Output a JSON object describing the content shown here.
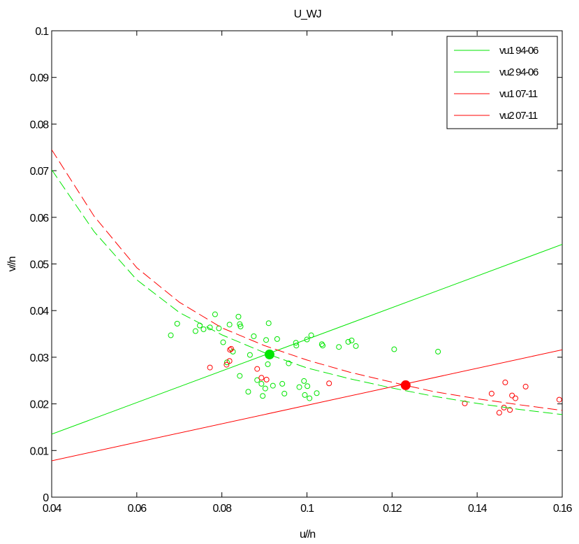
{
  "chart_data": {
    "type": "scatter",
    "title": "U_WJ",
    "xlabel": "u//n",
    "ylabel": "v//n",
    "xlim": [
      0.04,
      0.16
    ],
    "ylim": [
      0,
      0.1
    ],
    "xticks": [
      0.04,
      0.06,
      0.08,
      0.1,
      0.12,
      0.14,
      0.16
    ],
    "xtick_labels": [
      "0.04",
      "0.06",
      "0.08",
      "0.1",
      "0.12",
      "0.14",
      "0.16"
    ],
    "yticks": [
      0,
      0.01,
      0.02,
      0.03,
      0.04,
      0.05,
      0.06,
      0.07,
      0.08,
      0.09,
      0.1
    ],
    "ytick_labels": [
      "0",
      "0.01",
      "0.02",
      "0.03",
      "0.04",
      "0.05",
      "0.06",
      "0.07",
      "0.08",
      "0.09",
      "0.1"
    ],
    "grid": false,
    "legend": "top-right",
    "colors": {
      "green": "#00e600",
      "red": "#ff0000"
    },
    "lines": [
      {
        "name": "vu1 94-06",
        "color": "#00e600",
        "dash": "solid",
        "x": [
          0.04,
          0.16
        ],
        "y": [
          0.0135,
          0.0542
        ]
      },
      {
        "name": "vu2 94-06",
        "color": "#00e600",
        "dash": "dashed",
        "x": [
          0.04,
          0.05,
          0.06,
          0.07,
          0.08,
          0.091,
          0.1,
          0.11,
          0.12,
          0.13,
          0.14,
          0.15,
          0.16
        ],
        "y": [
          0.0702,
          0.0569,
          0.0466,
          0.0396,
          0.0348,
          0.0306,
          0.0277,
          0.0254,
          0.0234,
          0.0216,
          0.0201,
          0.0188,
          0.0177
        ]
      },
      {
        "name": "vu1 07-11",
        "color": "#ff0000",
        "dash": "solid",
        "x": [
          0.04,
          0.16
        ],
        "y": [
          0.0078,
          0.0316
        ]
      },
      {
        "name": "vu2 07-11",
        "color": "#ff0000",
        "dash": "dashed",
        "x": [
          0.04,
          0.05,
          0.06,
          0.07,
          0.08,
          0.09,
          0.1,
          0.11,
          0.123,
          0.13,
          0.14,
          0.15,
          0.16
        ],
        "y": [
          0.0745,
          0.0602,
          0.0492,
          0.0418,
          0.0363,
          0.0325,
          0.0294,
          0.0268,
          0.024,
          0.0226,
          0.0211,
          0.0198,
          0.0186
        ]
      }
    ],
    "scatter_series": [
      {
        "color": "#00e600",
        "points": [
          [
            0.068,
            0.0347
          ],
          [
            0.0695,
            0.0372
          ],
          [
            0.0738,
            0.0356
          ],
          [
            0.0748,
            0.0368
          ],
          [
            0.0757,
            0.036
          ],
          [
            0.0772,
            0.0364
          ],
          [
            0.0784,
            0.0392
          ],
          [
            0.0793,
            0.0362
          ],
          [
            0.0803,
            0.0332
          ],
          [
            0.0812,
            0.0289
          ],
          [
            0.0818,
            0.037
          ],
          [
            0.0826,
            0.0312
          ],
          [
            0.0839,
            0.0387
          ],
          [
            0.0842,
            0.0371
          ],
          [
            0.0844,
            0.0366
          ],
          [
            0.0842,
            0.026
          ],
          [
            0.0862,
            0.0226
          ],
          [
            0.0866,
            0.0305
          ],
          [
            0.0875,
            0.0345
          ],
          [
            0.0883,
            0.0251
          ],
          [
            0.0893,
            0.0243
          ],
          [
            0.0896,
            0.0217
          ],
          [
            0.0902,
            0.0233
          ],
          [
            0.0904,
            0.0337
          ],
          [
            0.0908,
            0.0285
          ],
          [
            0.091,
            0.0373
          ],
          [
            0.092,
            0.0239
          ],
          [
            0.093,
            0.0339
          ],
          [
            0.0942,
            0.0243
          ],
          [
            0.0947,
            0.0222
          ],
          [
            0.0957,
            0.0287
          ],
          [
            0.0974,
            0.0331
          ],
          [
            0.0975,
            0.0325
          ],
          [
            0.0982,
            0.0236
          ],
          [
            0.0993,
            0.0249
          ],
          [
            0.1,
            0.0338
          ],
          [
            0.1001,
            0.0238
          ],
          [
            0.0995,
            0.0219
          ],
          [
            0.1006,
            0.0212
          ],
          [
            0.101,
            0.0347
          ],
          [
            0.1023,
            0.0223
          ],
          [
            0.1035,
            0.0328
          ],
          [
            0.1037,
            0.0325
          ],
          [
            0.1075,
            0.0322
          ],
          [
            0.1097,
            0.0333
          ],
          [
            0.1105,
            0.0336
          ],
          [
            0.1115,
            0.0324
          ],
          [
            0.1205,
            0.0317
          ],
          [
            0.1308,
            0.0312
          ]
        ]
      },
      {
        "color": "#ff0000",
        "points": [
          [
            0.0772,
            0.0278
          ],
          [
            0.0811,
            0.0284
          ],
          [
            0.0818,
            0.0292
          ],
          [
            0.0819,
            0.0316
          ],
          [
            0.0822,
            0.0318
          ],
          [
            0.0883,
            0.0275
          ],
          [
            0.0893,
            0.0256
          ],
          [
            0.0905,
            0.0252
          ],
          [
            0.1052,
            0.0244
          ],
          [
            0.1371,
            0.0201
          ],
          [
            0.1434,
            0.0222
          ],
          [
            0.1452,
            0.0181
          ],
          [
            0.1463,
            0.0192
          ],
          [
            0.1466,
            0.0246
          ],
          [
            0.1477,
            0.0187
          ],
          [
            0.1482,
            0.0218
          ],
          [
            0.149,
            0.0212
          ],
          [
            0.1514,
            0.0237
          ],
          [
            0.1593,
            0.0209
          ]
        ]
      }
    ],
    "intersections": [
      {
        "color": "#00e600",
        "x": 0.0912,
        "y": 0.0306
      },
      {
        "color": "#ff0000",
        "x": 0.1232,
        "y": 0.024
      }
    ]
  }
}
